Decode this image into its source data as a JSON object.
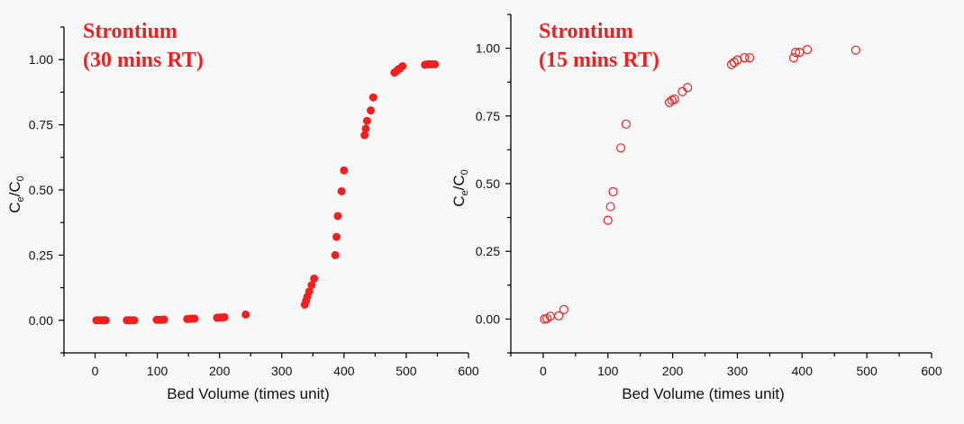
{
  "chart_data": [
    {
      "type": "scatter",
      "title_lines": [
        "Strontium",
        "(30 mins RT)"
      ],
      "xlabel": "Bed Volume (times unit)",
      "ylabel_main": "C",
      "ylabel_sub1": "e",
      "ylabel_mid": "/C",
      "ylabel_sub2": "0",
      "xlim": [
        -50,
        600
      ],
      "ylim": [
        -0.125,
        1.125
      ],
      "xticks": [
        0,
        100,
        200,
        300,
        400,
        500,
        600
      ],
      "xtick_labels": [
        "0",
        "100",
        "200",
        "300",
        "400",
        "500",
        "600"
      ],
      "yticks": [
        0,
        0.25,
        0.5,
        0.75,
        1.0
      ],
      "ytick_labels": [
        "0.00",
        "0.25",
        "0.50",
        "0.75",
        "1.00"
      ],
      "grid": false,
      "marker": "filled-circle",
      "color": "#f02020",
      "points": [
        [
          2,
          0
        ],
        [
          5,
          0
        ],
        [
          8,
          0
        ],
        [
          11,
          0
        ],
        [
          14,
          0
        ],
        [
          17,
          0
        ],
        [
          51,
          0
        ],
        [
          54,
          0
        ],
        [
          57,
          0
        ],
        [
          60,
          0
        ],
        [
          63,
          0
        ],
        [
          99,
          0.002
        ],
        [
          102,
          0.002
        ],
        [
          105,
          0.002
        ],
        [
          108,
          0.002
        ],
        [
          111,
          0.003
        ],
        [
          148,
          0.005
        ],
        [
          151,
          0.005
        ],
        [
          154,
          0.006
        ],
        [
          157,
          0.006
        ],
        [
          160,
          0.006
        ],
        [
          196,
          0.01
        ],
        [
          199,
          0.01
        ],
        [
          202,
          0.011
        ],
        [
          205,
          0.011
        ],
        [
          208,
          0.012
        ],
        [
          242,
          0.022
        ],
        [
          337,
          0.06
        ],
        [
          339,
          0.075
        ],
        [
          341,
          0.09
        ],
        [
          344,
          0.11
        ],
        [
          348,
          0.135
        ],
        [
          352,
          0.16
        ],
        [
          386,
          0.25
        ],
        [
          388,
          0.32
        ],
        [
          390,
          0.4
        ],
        [
          396,
          0.495
        ],
        [
          400,
          0.575
        ],
        [
          433,
          0.71
        ],
        [
          435,
          0.735
        ],
        [
          437,
          0.765
        ],
        [
          443,
          0.805
        ],
        [
          447,
          0.855
        ],
        [
          481,
          0.95
        ],
        [
          484,
          0.955
        ],
        [
          487,
          0.962
        ],
        [
          490,
          0.966
        ],
        [
          494,
          0.975
        ],
        [
          530,
          0.98
        ],
        [
          534,
          0.982
        ],
        [
          538,
          0.982
        ],
        [
          542,
          0.982
        ],
        [
          546,
          0.982
        ]
      ]
    },
    {
      "type": "scatter",
      "title_lines": [
        "Strontium",
        "(15 mins RT)"
      ],
      "xlabel": "Bed Volume (times unit)",
      "ylabel_main": "C",
      "ylabel_sub1": "e",
      "ylabel_mid": "/C",
      "ylabel_sub2": "0",
      "xlim": [
        -50,
        600
      ],
      "ylim": [
        -0.125,
        1.125
      ],
      "xticks": [
        0,
        100,
        200,
        300,
        400,
        500,
        600
      ],
      "xtick_labels": [
        "0",
        "100",
        "200",
        "300",
        "400",
        "500",
        "600"
      ],
      "yticks": [
        0,
        0.25,
        0.5,
        0.75,
        1.0
      ],
      "ytick_labels": [
        "0.00",
        "0.25",
        "0.50",
        "0.75",
        "1.00"
      ],
      "grid": false,
      "marker": "open-circle",
      "color": "#f02020",
      "points": [
        [
          2,
          0
        ],
        [
          6,
          0.002
        ],
        [
          11,
          0.01
        ],
        [
          24,
          0.012
        ],
        [
          32,
          0.035
        ],
        [
          100,
          0.365
        ],
        [
          104,
          0.415
        ],
        [
          108,
          0.47
        ],
        [
          120,
          0.632
        ],
        [
          128,
          0.72
        ],
        [
          195,
          0.8
        ],
        [
          199,
          0.808
        ],
        [
          203,
          0.812
        ],
        [
          215,
          0.84
        ],
        [
          223,
          0.855
        ],
        [
          291,
          0.94
        ],
        [
          295,
          0.948
        ],
        [
          300,
          0.957
        ],
        [
          311,
          0.965
        ],
        [
          319,
          0.965
        ],
        [
          387,
          0.965
        ],
        [
          390,
          0.985
        ],
        [
          396,
          0.985
        ],
        [
          408,
          0.995
        ],
        [
          483,
          0.993
        ]
      ]
    }
  ]
}
